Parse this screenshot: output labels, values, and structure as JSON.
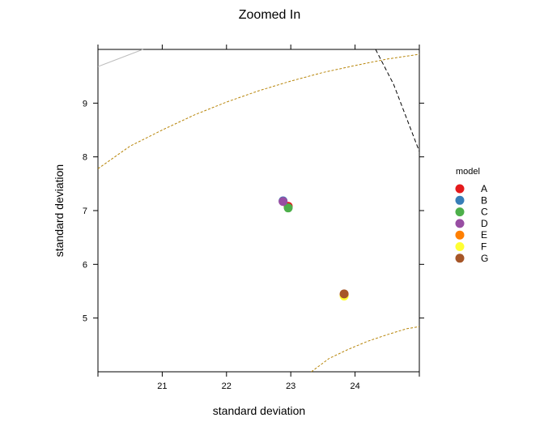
{
  "chart_data": {
    "type": "scatter",
    "title": "Zoomed In",
    "xlabel": "standard deviation",
    "ylabel": "standard deviation",
    "xlim": [
      20,
      25
    ],
    "ylim": [
      4,
      10
    ],
    "x_ticks": [
      21,
      22,
      23,
      24
    ],
    "y_ticks": [
      5,
      6,
      7,
      8,
      9
    ],
    "legend": {
      "title": "model",
      "position": "right"
    },
    "series": [
      {
        "name": "A",
        "color": "#e41a1c",
        "x": 22.96,
        "y": 7.08
      },
      {
        "name": "B",
        "color": "#377eb8",
        "x": 22.88,
        "y": 7.18
      },
      {
        "name": "C",
        "color": "#4daf4a",
        "x": 22.96,
        "y": 7.05
      },
      {
        "name": "D",
        "color": "#984ea3",
        "x": 22.88,
        "y": 7.17
      },
      {
        "name": "E",
        "color": "#ff7f00",
        "x": 23.83,
        "y": 5.43
      },
      {
        "name": "F",
        "color": "#ffff33",
        "x": 23.83,
        "y": 5.41
      },
      {
        "name": "G",
        "color": "#a65628",
        "x": 23.83,
        "y": 5.45
      }
    ],
    "reference_curves": [
      {
        "style": "solid-gray",
        "color": "#bdbdbd",
        "points": [
          [
            20.0,
            9.68
          ],
          [
            20.7,
            10.0
          ]
        ]
      },
      {
        "style": "dashed-black",
        "color": "#000000",
        "points": [
          [
            24.32,
            10.0
          ],
          [
            24.6,
            9.35
          ],
          [
            25.0,
            8.1
          ]
        ]
      },
      {
        "style": "dashed-gold",
        "color": "#b8860b",
        "points": [
          [
            20.0,
            7.78
          ],
          [
            20.5,
            8.2
          ],
          [
            21.0,
            8.5
          ],
          [
            21.5,
            8.78
          ],
          [
            22.0,
            9.02
          ],
          [
            22.5,
            9.23
          ],
          [
            23.0,
            9.41
          ],
          [
            23.5,
            9.57
          ],
          [
            24.0,
            9.7
          ],
          [
            24.5,
            9.82
          ],
          [
            25.0,
            9.91
          ]
        ]
      },
      {
        "style": "dashed-gold",
        "color": "#b8860b",
        "points": [
          [
            23.32,
            4.0
          ],
          [
            23.6,
            4.25
          ],
          [
            23.9,
            4.42
          ],
          [
            24.2,
            4.57
          ],
          [
            24.5,
            4.69
          ],
          [
            24.8,
            4.8
          ],
          [
            25.0,
            4.84
          ]
        ]
      }
    ]
  }
}
